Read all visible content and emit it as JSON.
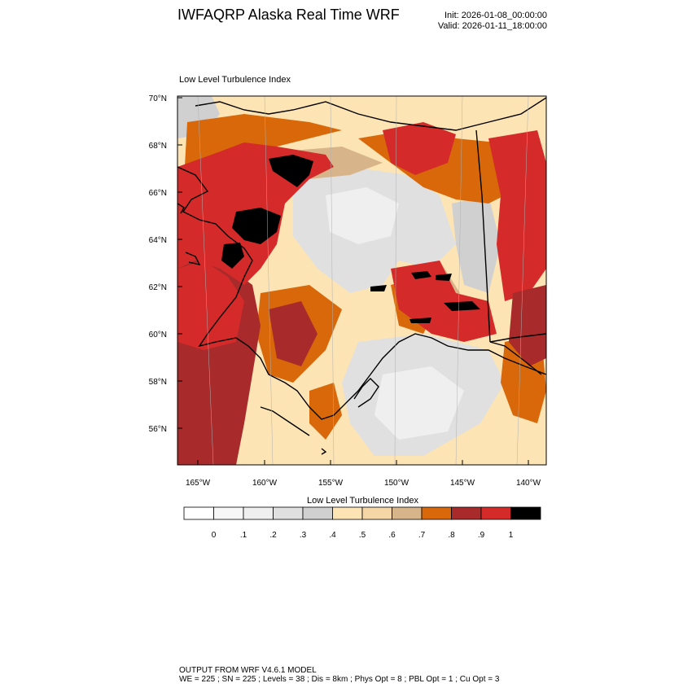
{
  "header": {
    "title": "IWFAQRP Alaska Real Time WRF",
    "init": "Init: 2026-01-08_00:00:00",
    "valid": "Valid: 2026-01-11_18:00:00"
  },
  "plot": {
    "field_label": "Low Level Turbulence Index",
    "lat_labels": [
      "70°N",
      "68°N",
      "66°N",
      "64°N",
      "62°N",
      "60°N",
      "58°N",
      "56°N"
    ],
    "lon_labels": [
      "165°W",
      "160°W",
      "155°W",
      "150°W",
      "145°W",
      "140°W"
    ]
  },
  "colorbar": {
    "title": "Low Level Turbulence Index",
    "tick_labels": [
      "0",
      ".1",
      ".2",
      ".3",
      ".4",
      ".5",
      ".6",
      ".7",
      ".8",
      ".9",
      "1"
    ],
    "colors": [
      "#ffffff",
      "#f7f7f7",
      "#efefef",
      "#e0e0e0",
      "#d0d0d0",
      "#fde4b4",
      "#f5d6a6",
      "#d8b48a",
      "#d8680a",
      "#a82a2a",
      "#d42a2a",
      "#000000"
    ]
  },
  "footer": {
    "line1": "OUTPUT FROM WRF V4.6.1 MODEL",
    "line2": "WE = 225 ; SN = 225 ; Levels = 38 ; Dis = 8km ; Phys Opt = 8 ; PBL Opt = 1 ; Cu Opt = 3"
  }
}
